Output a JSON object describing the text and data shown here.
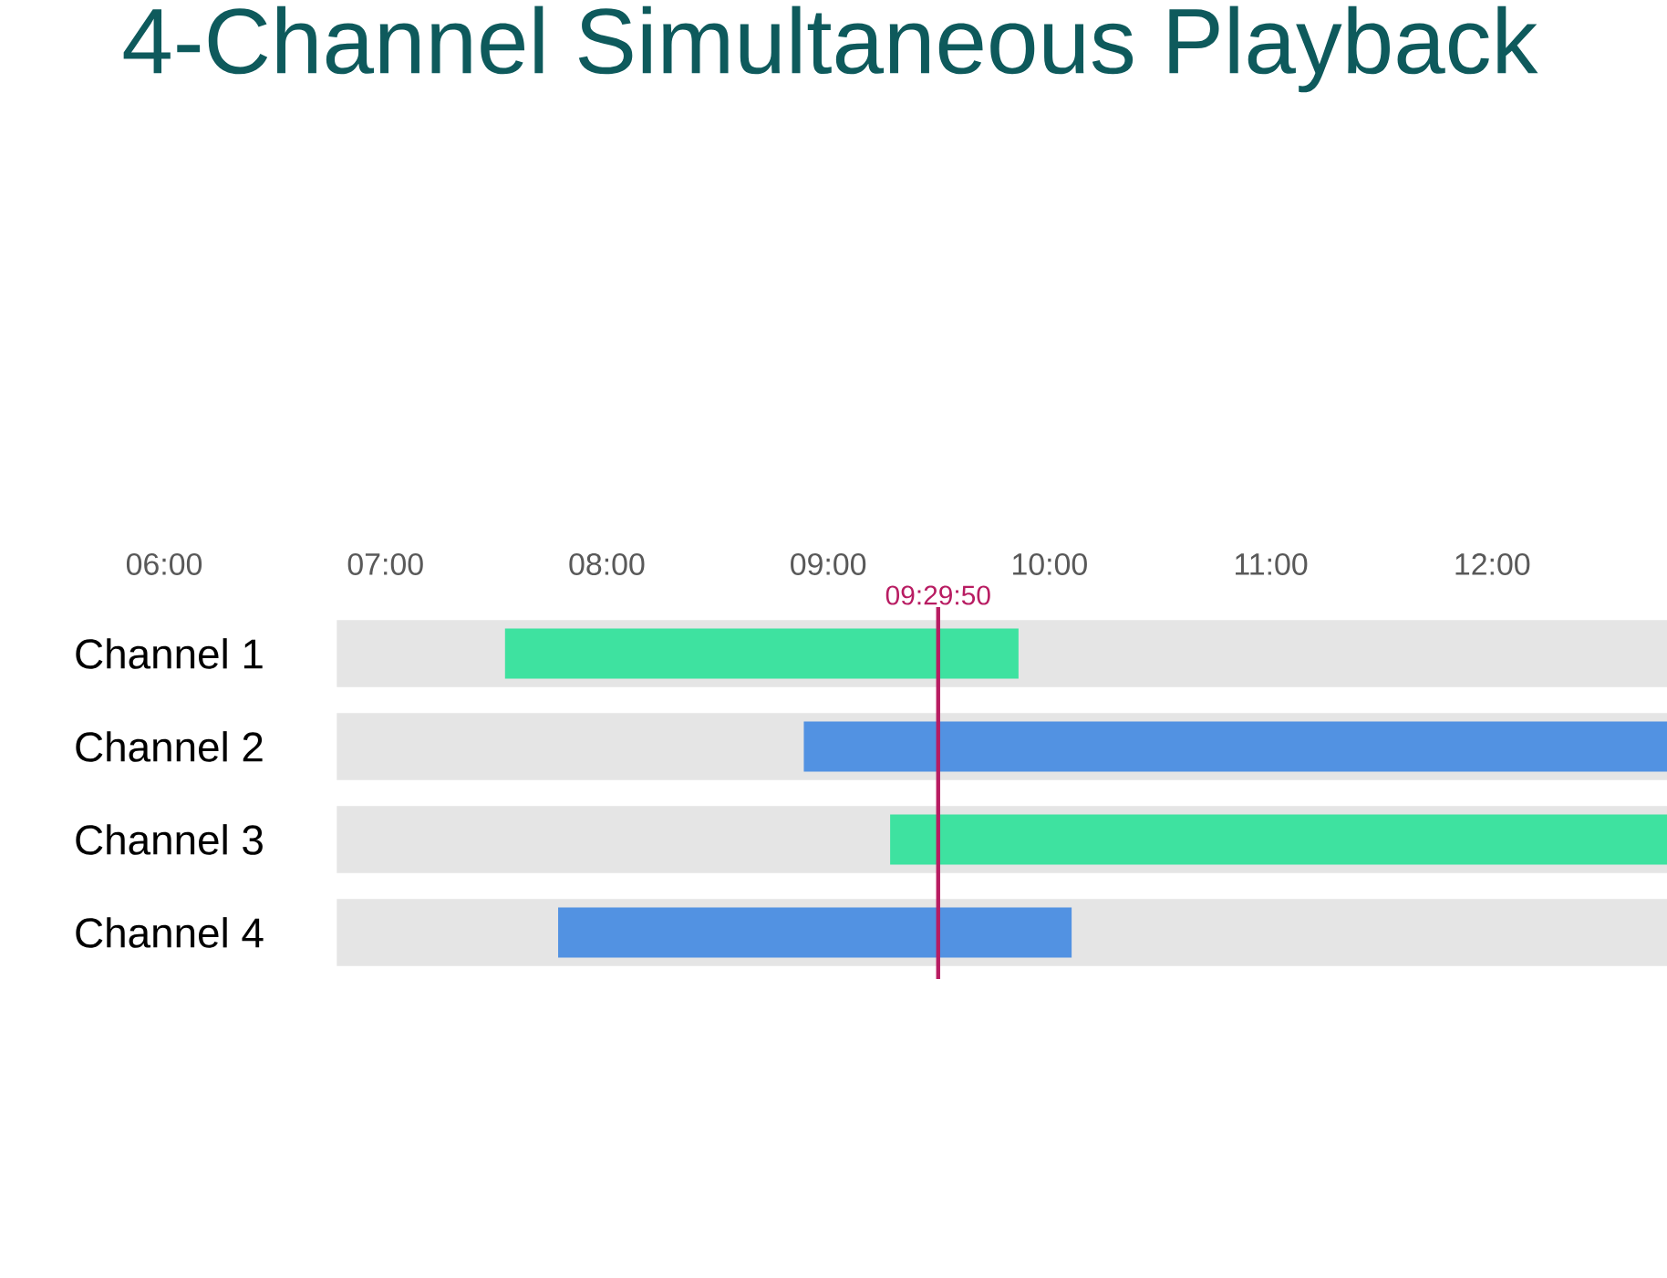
{
  "chart_data": {
    "type": "bar",
    "orientation": "horizontal",
    "title": "4-Channel Simultaneous Playback",
    "categories": [
      "Channel 1",
      "Channel 2",
      "Channel 3",
      "Channel 4"
    ],
    "series": [
      {
        "color": "#e5e5e5",
        "base": [
          6.78,
          6.78,
          6.78,
          6.78
        ],
        "values": [
          6.01,
          6.01,
          6.01,
          6.01
        ]
      },
      {
        "color": "#3ee2a0",
        "base": [
          7.54,
          null,
          9.28,
          null
        ],
        "values": [
          2.32,
          null,
          3.51,
          null
        ]
      },
      {
        "color": "#5292e2",
        "base": [
          null,
          8.89,
          null,
          7.78
        ],
        "values": [
          null,
          3.9,
          null,
          2.32
        ]
      }
    ],
    "xlim": [
      6,
      12.79
    ],
    "xticks": [
      {
        "value": 6,
        "label": "06:00"
      },
      {
        "value": 7,
        "label": "07:00"
      },
      {
        "value": 8,
        "label": "08:00"
      },
      {
        "value": 9,
        "label": "09:00"
      },
      {
        "value": 10,
        "label": "10:00"
      },
      {
        "value": 11,
        "label": "11:00"
      },
      {
        "value": 12,
        "label": "12:00"
      }
    ],
    "ref_lines": [
      {
        "axis": "x",
        "value": 9.497,
        "label": "09:29:50",
        "color": "#b81c62"
      }
    ]
  }
}
